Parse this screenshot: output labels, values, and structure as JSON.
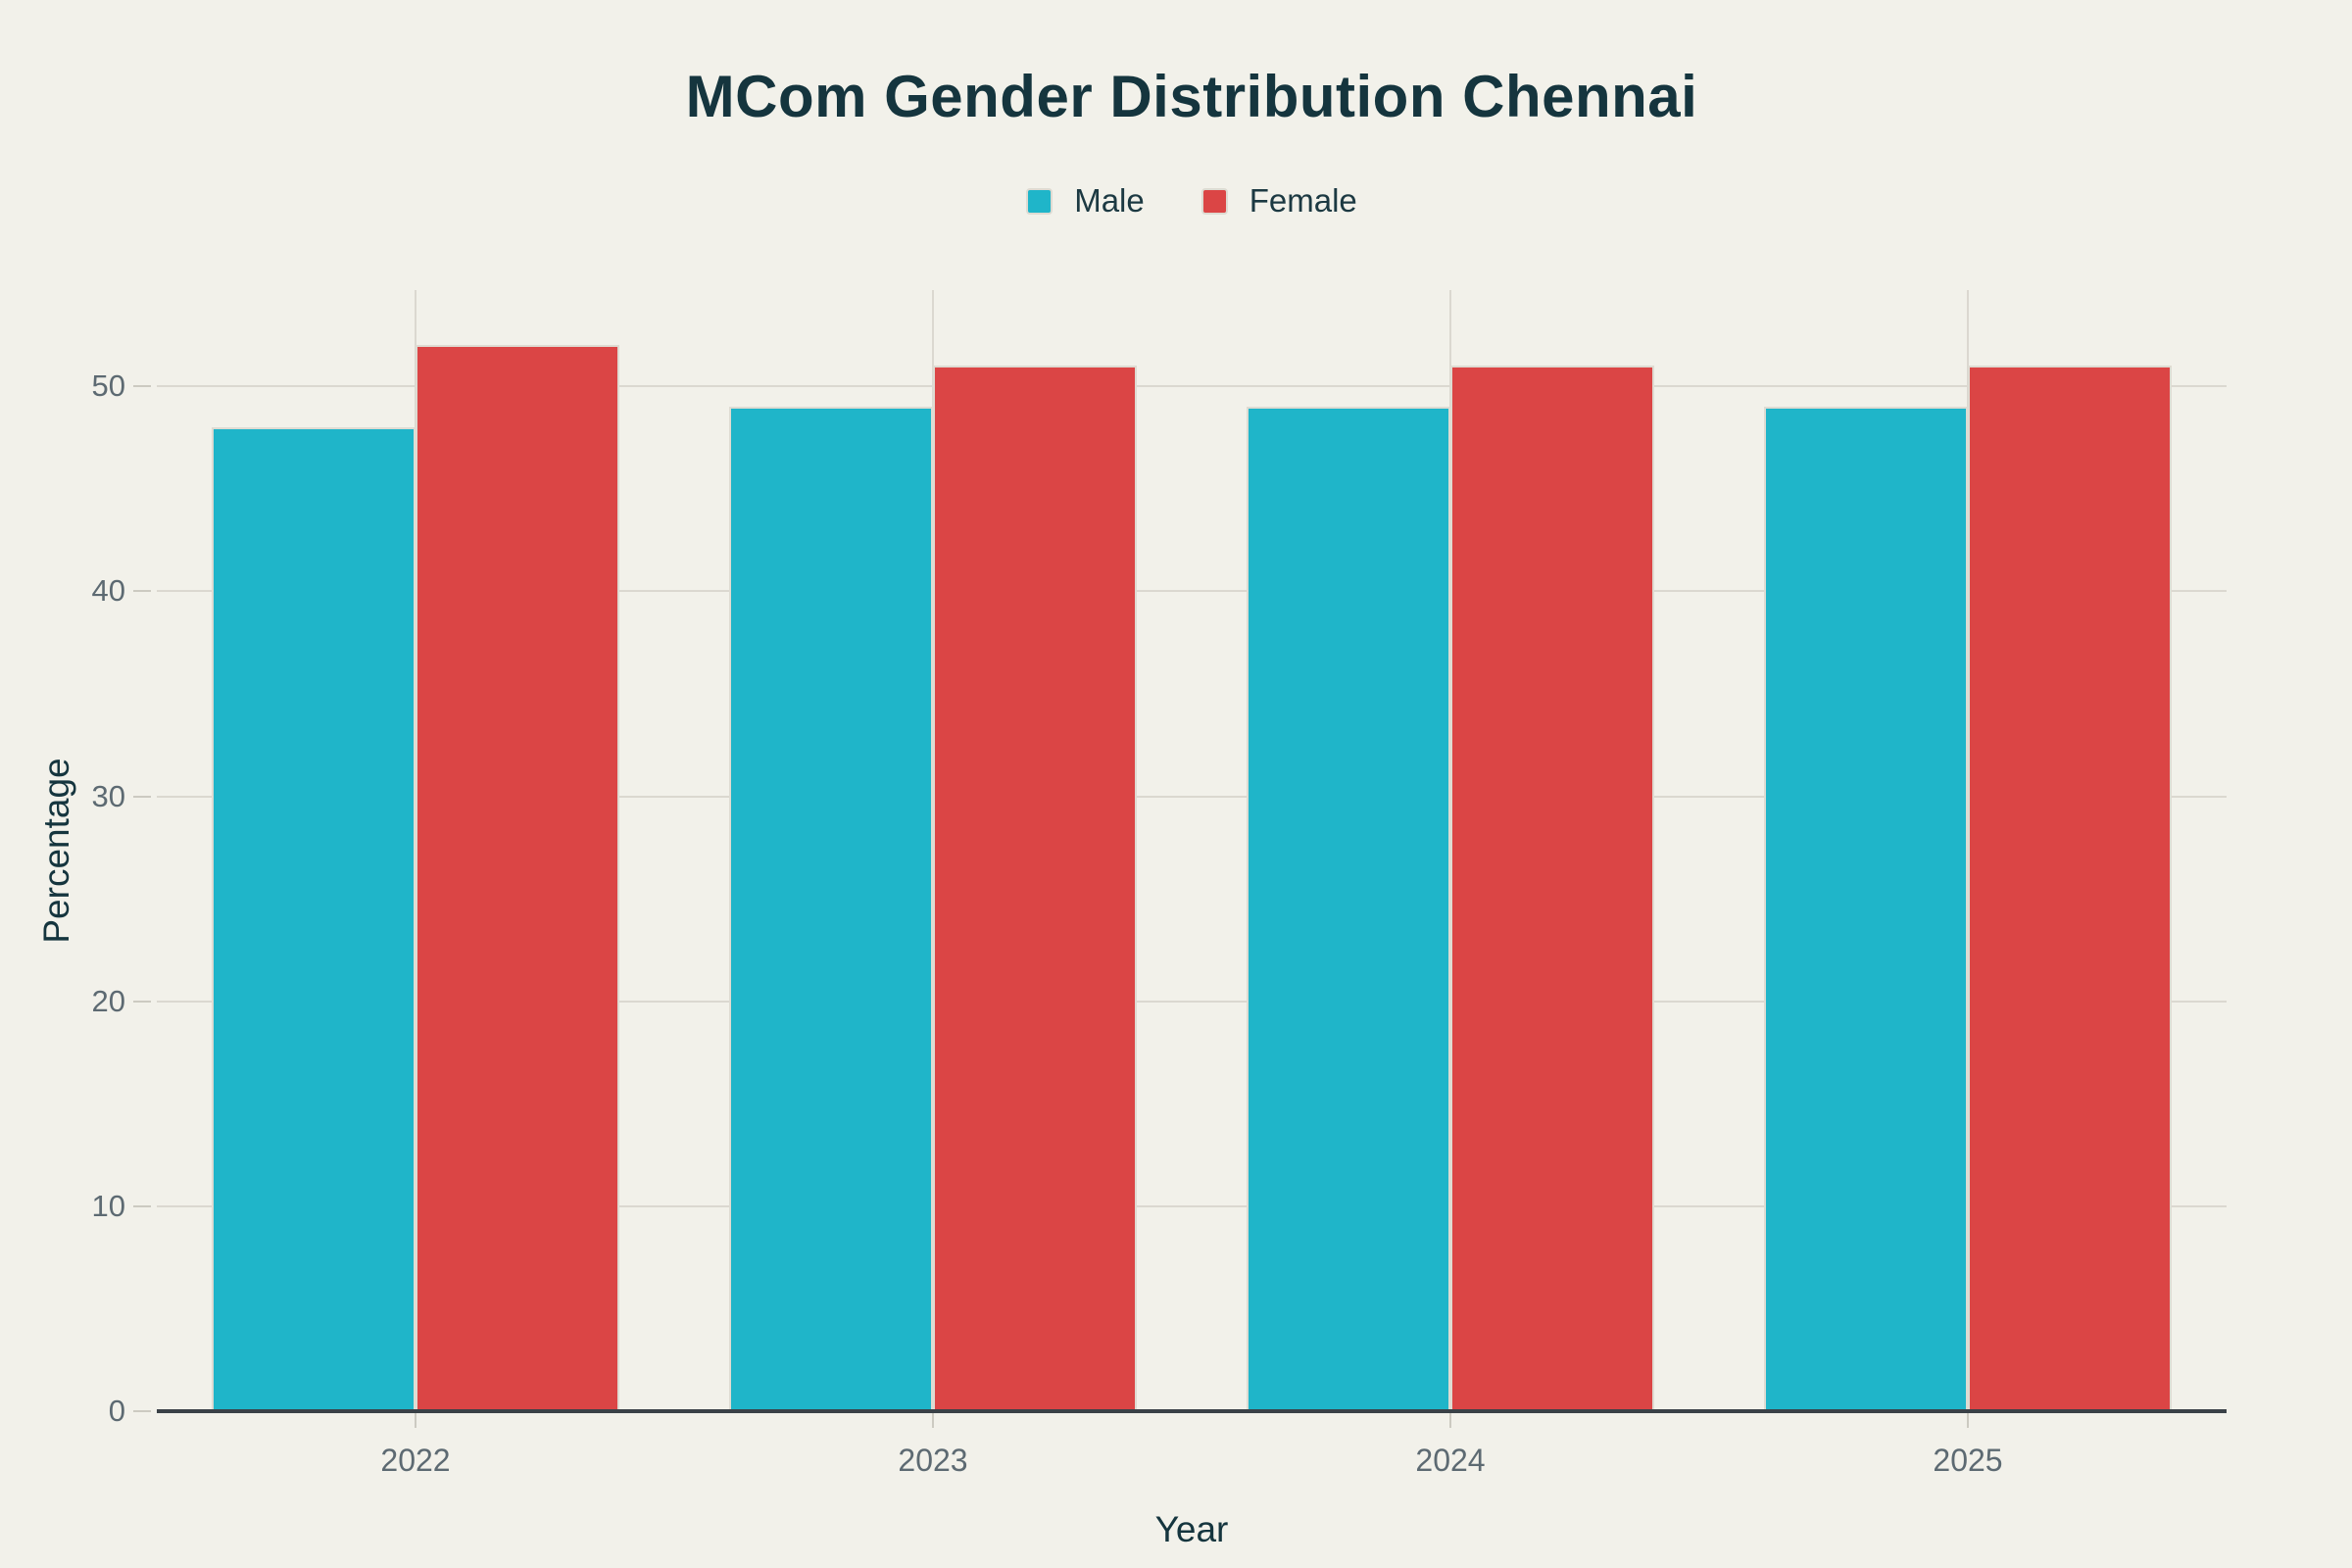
{
  "title": {
    "text": "MCom Gender Distribution Chennai"
  },
  "legend": {
    "items": [
      {
        "label": "Male",
        "color": "#1FB5C9"
      },
      {
        "label": "Female",
        "color": "#DB4545"
      }
    ]
  },
  "axes": {
    "y": {
      "label": "Percentage",
      "tick_labels": [
        "0",
        "10",
        "20",
        "30",
        "40",
        "50"
      ]
    },
    "x": {
      "label": "Year",
      "categories": [
        "2022",
        "2023",
        "2024",
        "2025"
      ]
    }
  },
  "chart_data": {
    "type": "bar",
    "title": "MCom Gender Distribution Chennai",
    "categories": [
      "2022",
      "2023",
      "2024",
      "2025"
    ],
    "series": [
      {
        "name": "Male",
        "color": "#1FB5C9",
        "values": [
          48,
          49,
          49,
          49
        ]
      },
      {
        "name": "Female",
        "color": "#DB4545",
        "values": [
          52,
          51,
          51,
          51
        ]
      }
    ],
    "xlabel": "Year",
    "ylabel": "Percentage",
    "yticks": [
      0,
      10,
      20,
      30,
      40,
      50
    ],
    "ylim": [
      0,
      54.7
    ],
    "grid": true,
    "legend_position": "top-center",
    "bar_gap_within_group": 0
  },
  "style": {
    "background": "#F2F1EA",
    "title_color": "#15353E",
    "legend_text_color": "#1C3942",
    "axis_title_color": "#15353E",
    "tick_text_color": "#5D6A72",
    "gridline_color": "#DBD8D0",
    "tick_mark_color": "#CCCAC1",
    "axis_line_color": "#3A4147",
    "bar_stroke_color": "#DEDBD2"
  }
}
